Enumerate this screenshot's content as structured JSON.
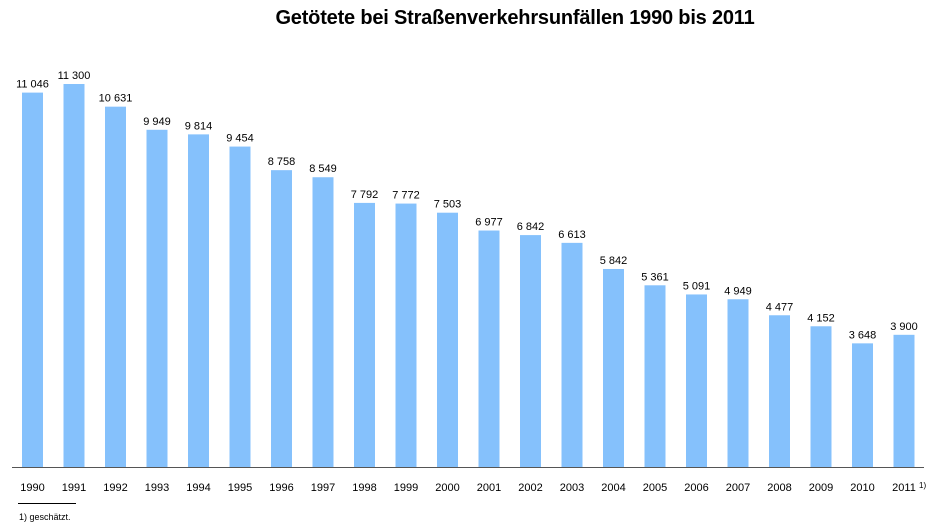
{
  "chart_data": {
    "type": "bar",
    "title": "Getötete bei Straßenverkehrsunfällen 1990 bis 2011",
    "categories": [
      "1990",
      "1991",
      "1992",
      "1993",
      "1994",
      "1995",
      "1996",
      "1997",
      "1998",
      "1999",
      "2000",
      "2001",
      "2002",
      "2003",
      "2004",
      "2005",
      "2006",
      "2007",
      "2008",
      "2009",
      "2010",
      "2011"
    ],
    "values": [
      11046,
      11300,
      10631,
      9949,
      9814,
      9454,
      8758,
      8549,
      7792,
      7772,
      7503,
      6977,
      6842,
      6613,
      5842,
      5361,
      5091,
      4949,
      4477,
      4152,
      3648,
      3900
    ],
    "value_labels": [
      "11 046",
      "11 300",
      "10 631",
      "9 949",
      "9 814",
      "9 454",
      "8 758",
      "8 549",
      "7 792",
      "7 772",
      "7 503",
      "6 977",
      "6 842",
      "6 613",
      "5 842",
      "5 361",
      "5 091",
      "4 949",
      "4 477",
      "4 152",
      "3 648",
      "3 900"
    ],
    "footnote_marker": "1)",
    "footnote_marker_category": "2011",
    "xlabel": "",
    "ylabel": "",
    "ylim": [
      0,
      11300
    ],
    "grid": false,
    "legend": "none",
    "bar_color": "#85c1fc"
  },
  "footnote": {
    "text": "1) geschätzt."
  }
}
